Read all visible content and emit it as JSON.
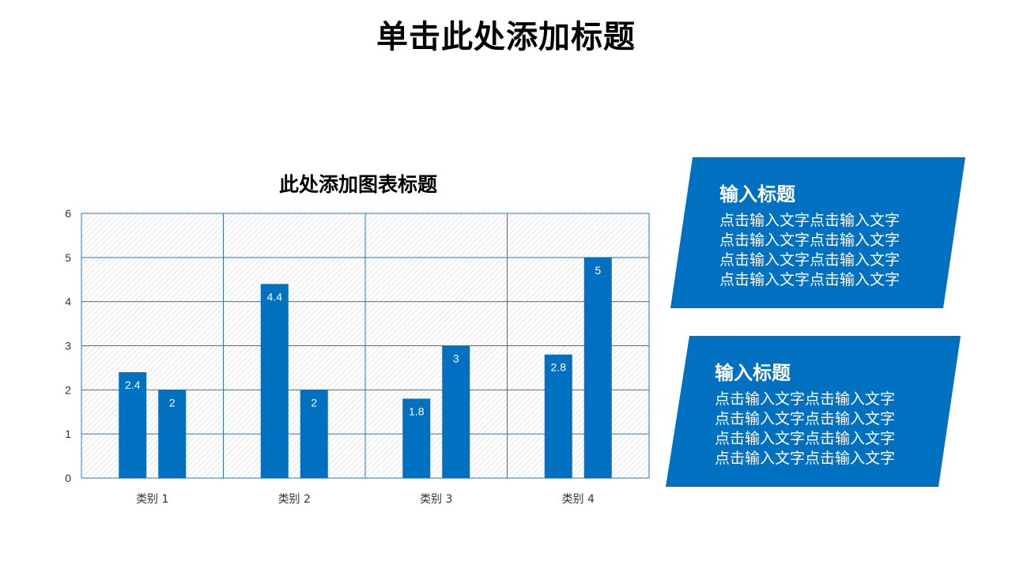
{
  "slide": {
    "title": "单击此处添加标题"
  },
  "chart_data": {
    "type": "bar",
    "title": "此处添加图表标题",
    "categories": [
      "类别 1",
      "类别 2",
      "类别 3",
      "类别 4"
    ],
    "series": [
      {
        "values": [
          2.4,
          4.4,
          1.8,
          2.8
        ]
      },
      {
        "values": [
          2,
          2,
          3,
          5
        ]
      }
    ],
    "ylim": [
      0,
      6
    ],
    "yticks": [
      "0",
      "1",
      "2",
      "3",
      "4",
      "5",
      "6"
    ],
    "grid": true,
    "data_labels": true,
    "legend": "none",
    "bar_color": "#0070c0"
  },
  "cards": [
    {
      "title": "输入标题",
      "lines": [
        "点击输入文字点击输入文字",
        "点击输入文字点击输入文字",
        "点击输入文字点击输入文字",
        "点击输入文字点击输入文字"
      ]
    },
    {
      "title": "输入标题",
      "lines": [
        "点击输入文字点击输入文字",
        "点击输入文字点击输入文字",
        "点击输入文字点击输入文字",
        "点击输入文字点击输入文字"
      ]
    }
  ],
  "colors": {
    "accent": "#0070c0",
    "grid": "#2e75b6",
    "hatch": "#d0d0d0"
  }
}
